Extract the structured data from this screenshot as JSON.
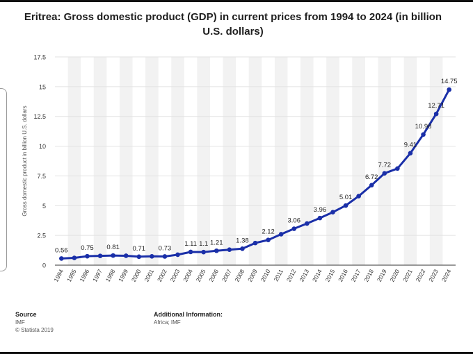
{
  "chart_data": {
    "type": "line",
    "title": "Eritrea: Gross domestic product (GDP) in current prices from 1994 to 2024 (in billion U.S. dollars)",
    "xlabel": "",
    "ylabel": "Gross domestic product in billion U.S. dollars",
    "ylim": [
      0,
      17.5
    ],
    "yticks": [
      "0",
      "2.5",
      "5",
      "7.5",
      "10",
      "12.5",
      "15",
      "17.5"
    ],
    "categories": [
      "1994",
      "1995",
      "1996",
      "1997",
      "1998",
      "1999",
      "2000",
      "2001",
      "2002",
      "2003",
      "2004",
      "2005",
      "2006",
      "2007",
      "2008",
      "2009",
      "2010",
      "2011",
      "2012",
      "2013",
      "2014",
      "2015",
      "2016",
      "2017",
      "2018",
      "2019",
      "2020",
      "2021",
      "2022",
      "2023",
      "2024"
    ],
    "series": [
      {
        "name": "GDP",
        "values": [
          0.56,
          0.61,
          0.75,
          0.78,
          0.81,
          0.79,
          0.71,
          0.74,
          0.73,
          0.88,
          1.11,
          1.1,
          1.21,
          1.3,
          1.38,
          1.86,
          2.12,
          2.6,
          3.06,
          3.5,
          3.96,
          4.45,
          5.01,
          5.8,
          6.72,
          7.72,
          8.12,
          9.41,
          10.98,
          12.71,
          14.75
        ]
      }
    ],
    "data_labels": [
      {
        "index": 0,
        "text": "0.56"
      },
      {
        "index": 2,
        "text": "0.75"
      },
      {
        "index": 4,
        "text": "0.81"
      },
      {
        "index": 6,
        "text": "0.71"
      },
      {
        "index": 8,
        "text": "0.73"
      },
      {
        "index": 10,
        "text": "1.11"
      },
      {
        "index": 11,
        "text": "1.1"
      },
      {
        "index": 12,
        "text": "1.21"
      },
      {
        "index": 14,
        "text": "1.38"
      },
      {
        "index": 16,
        "text": "2.12"
      },
      {
        "index": 18,
        "text": "3.06"
      },
      {
        "index": 20,
        "text": "3.96"
      },
      {
        "index": 22,
        "text": "5.01"
      },
      {
        "index": 24,
        "text": "6.72"
      },
      {
        "index": 25,
        "text": "7.72"
      },
      {
        "index": 27,
        "text": "9.41"
      },
      {
        "index": 28,
        "text": "10.98"
      },
      {
        "index": 29,
        "text": "12.71"
      },
      {
        "index": 30,
        "text": "14.75"
      }
    ],
    "grid": true,
    "line_color": "#1a2fa8",
    "band_color": "#f2f2f2",
    "grid_color": "#e2e2e2"
  },
  "footer": {
    "source_heading": "Source",
    "source_lines": [
      "IMF",
      "© Statista 2019"
    ],
    "additional_heading": "Additional Information:",
    "additional_text": "Africa; IMF"
  }
}
